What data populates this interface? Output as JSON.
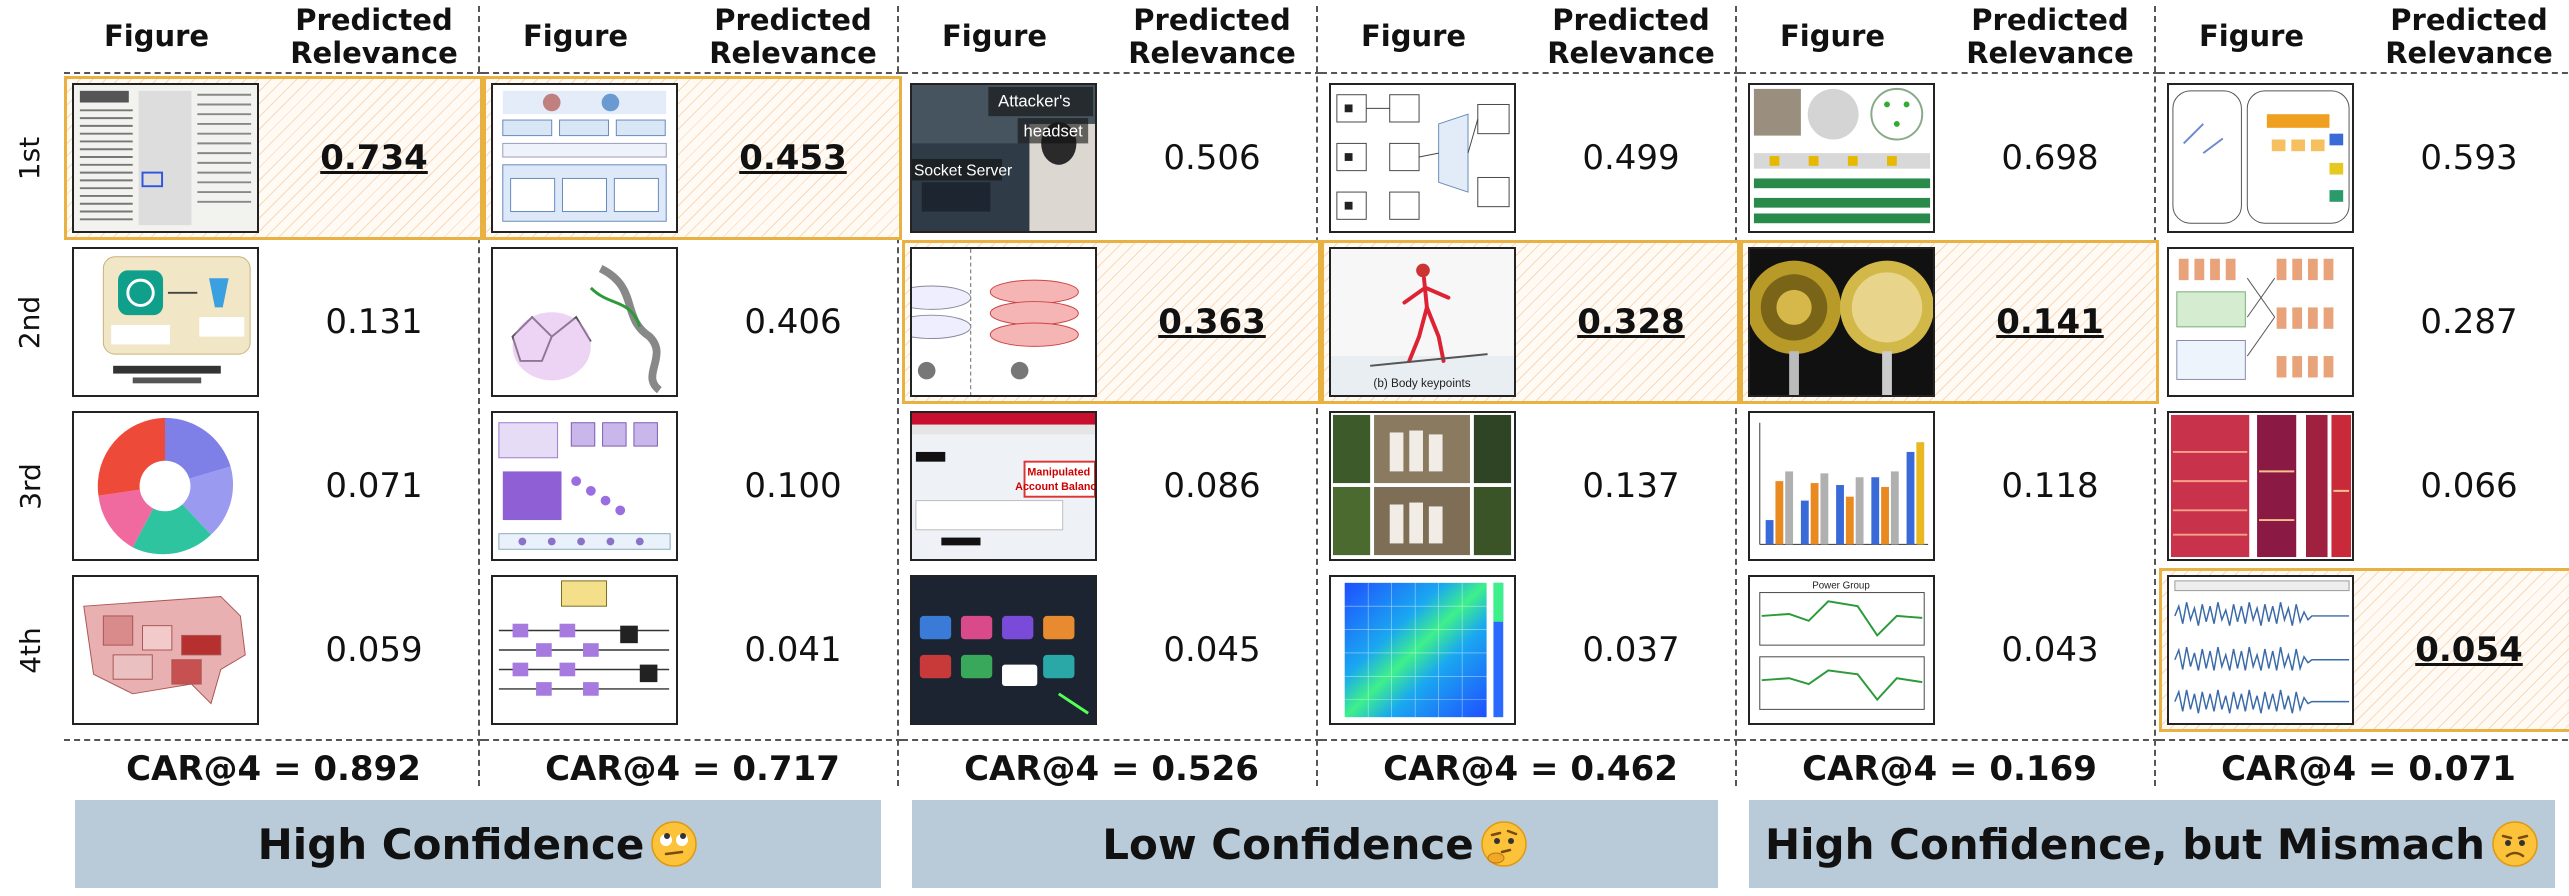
{
  "headers": {
    "figure": "Figure",
    "relevance": "Predicted Relevance"
  },
  "ranks": [
    "1st",
    "2nd",
    "3rd",
    "4th"
  ],
  "car_label": "CAR@4",
  "panels": [
    {
      "scores": [
        "0.734",
        "0.131",
        "0.071",
        "0.059"
      ],
      "highlight": [
        0
      ],
      "car": "CAR@4 = 0.892",
      "thumbs": [
        "newspaper",
        "flowchart-gpt",
        "sunburst-chart",
        "us-map"
      ]
    },
    {
      "scores": [
        "0.453",
        "0.406",
        "0.100",
        "0.041"
      ],
      "highlight": [
        0
      ],
      "car": "CAR@4 = 0.717",
      "thumbs": [
        "model-diagram",
        "molecule",
        "network-diagram",
        "quantum-circuit"
      ]
    },
    {
      "scores": [
        "0.506",
        "0.363",
        "0.086",
        "0.045"
      ],
      "highlight": [
        1
      ],
      "car": "CAR@4 = 0.526",
      "thumbs": [
        "vr-photo",
        "vr-layers",
        "bank-webpage",
        "tv-menu"
      ],
      "thumb_text": {
        "t0a": "Attacker's",
        "t0b": "headset",
        "t0c": "Socket Server",
        "t2a": "Manipulated",
        "t2b": "Account Balance"
      }
    },
    {
      "scores": [
        "0.499",
        "0.328",
        "0.137",
        "0.037"
      ],
      "highlight": [
        1
      ],
      "car": "CAR@4 = 0.462",
      "thumbs": [
        "block-diagram",
        "skier-keypoints",
        "photo-grid",
        "heatmap"
      ],
      "thumb_text": {
        "t1a": "(b) Body keypoints"
      }
    },
    {
      "scores": [
        "0.698",
        "0.141",
        "0.118",
        "0.043"
      ],
      "highlight": [
        1
      ],
      "car": "CAR@4 = 0.169",
      "thumbs": [
        "device-photos",
        "circular-sensor",
        "bar-chart",
        "line-plots"
      ],
      "thumb_text": {
        "t3a": "Power Group"
      }
    },
    {
      "scores": [
        "0.593",
        "0.287",
        "0.066",
        "0.054"
      ],
      "highlight": [
        3
      ],
      "car": "CAR@4 = 0.071",
      "thumbs": [
        "processing-diagram",
        "grid-architecture",
        "signal-bands",
        "waveforms"
      ]
    }
  ],
  "banners": [
    {
      "text": "High Confidence",
      "emoji": "rolling-eyes-emoji"
    },
    {
      "text": "Low Confidence",
      "emoji": "thinking-emoji"
    },
    {
      "text": "High Confidence, but Mismach",
      "emoji": "confused-emoji"
    }
  ]
}
